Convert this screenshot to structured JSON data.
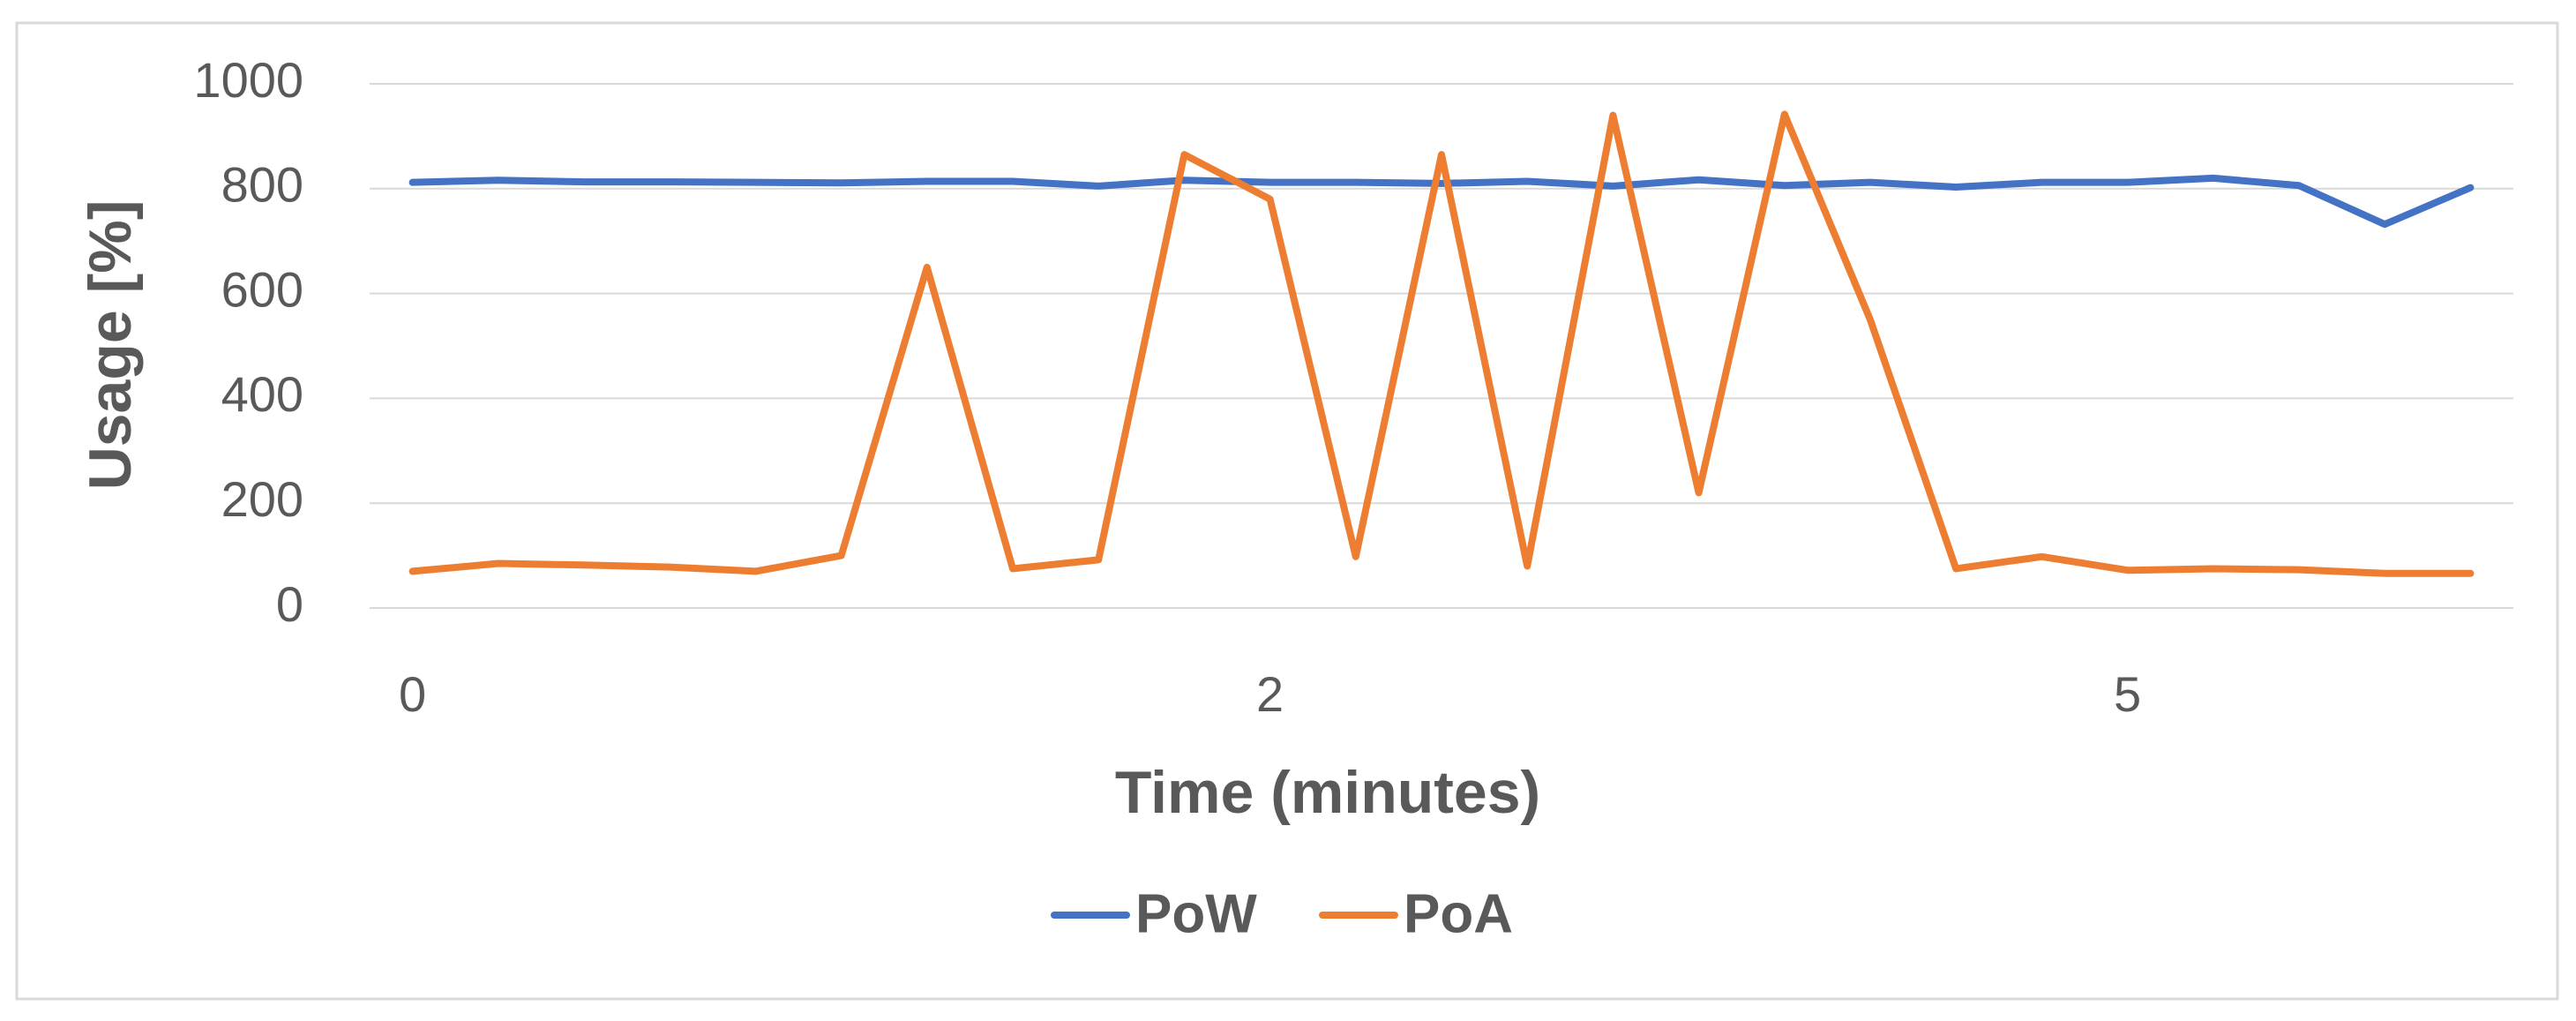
{
  "chart_data": {
    "type": "line",
    "xlabel": "Time (minutes)",
    "ylabel": "Usage [%]",
    "categories": [
      "0",
      null,
      null,
      null,
      null,
      null,
      null,
      null,
      null,
      null,
      "2",
      null,
      null,
      null,
      null,
      null,
      null,
      null,
      null,
      null,
      "5",
      null,
      null,
      null,
      null
    ],
    "series": [
      {
        "name": "PoW",
        "color": "#4472c4",
        "values": [
          812,
          816,
          813,
          813,
          812,
          811,
          814,
          814,
          805,
          816,
          812,
          812,
          810,
          814,
          805,
          817,
          806,
          812,
          803,
          812,
          812,
          820,
          806,
          732,
          802
        ]
      },
      {
        "name": "PoA",
        "color": "#ed7d31",
        "values": [
          70,
          85,
          82,
          78,
          70,
          100,
          650,
          75,
          92,
          865,
          780,
          98,
          865,
          80,
          940,
          220,
          942,
          550,
          75,
          98,
          72,
          75,
          73,
          66,
          66
        ]
      }
    ],
    "ylim": [
      0,
      1000
    ],
    "yticks": [
      0,
      200,
      400,
      600,
      800,
      1000
    ],
    "grid": true,
    "legend": "bottom"
  }
}
